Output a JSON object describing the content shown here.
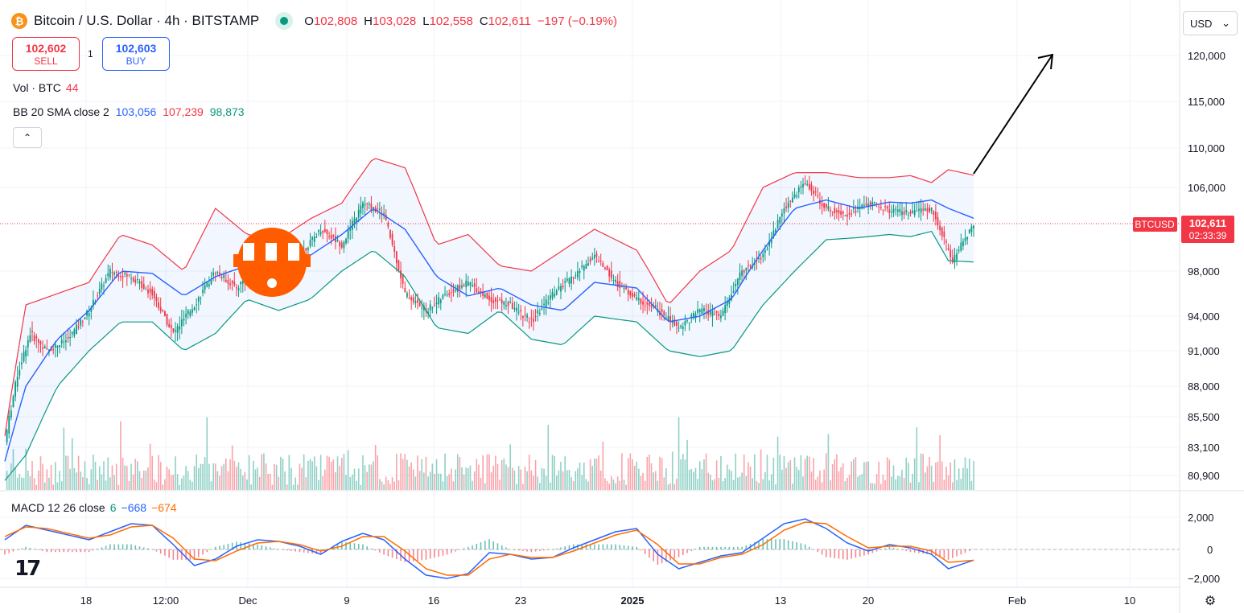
{
  "header": {
    "coin_icon": "bitcoin-icon",
    "coin_glyph": "₿",
    "title": "Bitcoin / U.S. Dollar · 4h · BITSTAMP",
    "o_label": "O",
    "o": "102,808",
    "h_label": "H",
    "h": "103,028",
    "l_label": "L",
    "l": "102,558",
    "c_label": "C",
    "c": "102,611",
    "change": "−197 (−0.19%)"
  },
  "trade": {
    "sell_price": "102,602",
    "sell_label": "SELL",
    "spread": "1",
    "buy_price": "102,603",
    "buy_label": "BUY"
  },
  "indicators": {
    "vol_label": "Vol · BTC",
    "vol_value": "44",
    "bb_label": "BB 20 SMA close 2",
    "bb_basis": "103,056",
    "bb_upper": "107,239",
    "bb_lower": "98,873",
    "collapse_glyph": "⌃",
    "macd_label": "MACD 12 26 close",
    "macd_signal_len": "6",
    "macd_value": "−668",
    "macd_signal": "−674"
  },
  "currency": {
    "value": "USD",
    "arrow": "⌄"
  },
  "settings_glyph": "⚙",
  "logo_text": "17",
  "colors": {
    "up": "#089981",
    "down": "#f23645",
    "bb_upper": "#f23645",
    "bb_basis": "#2962ff",
    "bb_lower": "#089981",
    "macd": "#2962ff",
    "signal": "#ff6d00",
    "last_price": "#f23645"
  },
  "chart_data": {
    "type": "candlestick",
    "symbol": "BTCUSD",
    "timeframe": "4h",
    "price_axis_ticks": [
      "120,000",
      "115,000",
      "110,000",
      "106,000",
      "98,000",
      "94,000",
      "91,000",
      "88,000",
      "85,500",
      "83,100",
      "80,900"
    ],
    "price_axis_values": [
      120000,
      115000,
      110000,
      106000,
      98000,
      94000,
      91000,
      88000,
      85500,
      83100,
      80900
    ],
    "macd_axis_ticks": [
      "2,000",
      "0",
      "−2,000"
    ],
    "x_ticks": [
      "18",
      "12:00",
      "Dec",
      "9",
      "16",
      "23",
      "2025",
      "13",
      "20",
      "Feb",
      "10"
    ],
    "last_price": {
      "symbol": "BTCUSD",
      "price": "102,611",
      "countdown": "02:33:39"
    },
    "close_path": [
      [
        0,
        83500
      ],
      [
        6,
        89000
      ],
      [
        12,
        92500
      ],
      [
        20,
        91000
      ],
      [
        30,
        92000
      ],
      [
        40,
        94500
      ],
      [
        50,
        98000
      ],
      [
        60,
        97500
      ],
      [
        70,
        96000
      ],
      [
        80,
        92500
      ],
      [
        90,
        95000
      ],
      [
        100,
        98000
      ],
      [
        110,
        96500
      ],
      [
        120,
        98500
      ],
      [
        130,
        97000
      ],
      [
        140,
        99500
      ],
      [
        150,
        102000
      ],
      [
        160,
        100500
      ],
      [
        170,
        104500
      ],
      [
        180,
        103500
      ],
      [
        190,
        96000
      ],
      [
        200,
        94500
      ],
      [
        210,
        96000
      ],
      [
        220,
        97000
      ],
      [
        230,
        95500
      ],
      [
        240,
        95000
      ],
      [
        250,
        93500
      ],
      [
        260,
        96000
      ],
      [
        270,
        97500
      ],
      [
        280,
        99500
      ],
      [
        290,
        97000
      ],
      [
        300,
        95500
      ],
      [
        310,
        94500
      ],
      [
        320,
        93000
      ],
      [
        330,
        94500
      ],
      [
        340,
        94000
      ],
      [
        350,
        98000
      ],
      [
        360,
        99500
      ],
      [
        370,
        104000
      ],
      [
        380,
        106500
      ],
      [
        390,
        104000
      ],
      [
        400,
        103500
      ],
      [
        410,
        104500
      ],
      [
        420,
        103800
      ],
      [
        430,
        103500
      ],
      [
        440,
        104000
      ],
      [
        450,
        99000
      ],
      [
        460,
        102611
      ]
    ],
    "bb_upper_path": [
      [
        0,
        84000
      ],
      [
        10,
        95000
      ],
      [
        25,
        96000
      ],
      [
        40,
        97000
      ],
      [
        55,
        101500
      ],
      [
        70,
        100500
      ],
      [
        85,
        98000
      ],
      [
        100,
        104000
      ],
      [
        115,
        101500
      ],
      [
        130,
        101000
      ],
      [
        145,
        103000
      ],
      [
        160,
        104500
      ],
      [
        175,
        109000
      ],
      [
        190,
        108000
      ],
      [
        205,
        100500
      ],
      [
        220,
        101500
      ],
      [
        235,
        98500
      ],
      [
        250,
        98000
      ],
      [
        265,
        100000
      ],
      [
        280,
        102000
      ],
      [
        300,
        100000
      ],
      [
        315,
        95000
      ],
      [
        330,
        98000
      ],
      [
        345,
        100000
      ],
      [
        360,
        106000
      ],
      [
        375,
        107500
      ],
      [
        390,
        107500
      ],
      [
        405,
        107000
      ],
      [
        420,
        107000
      ],
      [
        430,
        107200
      ],
      [
        440,
        106500
      ],
      [
        448,
        107800
      ],
      [
        460,
        107239
      ]
    ],
    "bb_basis_path": [
      [
        0,
        82000
      ],
      [
        10,
        88000
      ],
      [
        25,
        92000
      ],
      [
        40,
        94500
      ],
      [
        55,
        98000
      ],
      [
        70,
        97800
      ],
      [
        85,
        95800
      ],
      [
        100,
        97500
      ],
      [
        115,
        98500
      ],
      [
        130,
        97800
      ],
      [
        145,
        99500
      ],
      [
        160,
        101500
      ],
      [
        175,
        104000
      ],
      [
        190,
        102000
      ],
      [
        205,
        97500
      ],
      [
        220,
        95800
      ],
      [
        235,
        96500
      ],
      [
        250,
        95000
      ],
      [
        265,
        94500
      ],
      [
        280,
        97000
      ],
      [
        300,
        96500
      ],
      [
        315,
        93500
      ],
      [
        330,
        94000
      ],
      [
        345,
        95500
      ],
      [
        360,
        100000
      ],
      [
        375,
        104000
      ],
      [
        390,
        104800
      ],
      [
        405,
        104000
      ],
      [
        420,
        104600
      ],
      [
        430,
        104500
      ],
      [
        440,
        104800
      ],
      [
        448,
        104000
      ],
      [
        460,
        103056
      ]
    ],
    "bb_lower_path": [
      [
        0,
        80500
      ],
      [
        10,
        82500
      ],
      [
        25,
        88000
      ],
      [
        40,
        91000
      ],
      [
        55,
        93500
      ],
      [
        70,
        93500
      ],
      [
        85,
        91000
      ],
      [
        100,
        92500
      ],
      [
        115,
        95500
      ],
      [
        130,
        94500
      ],
      [
        145,
        95500
      ],
      [
        160,
        98000
      ],
      [
        175,
        100000
      ],
      [
        190,
        97500
      ],
      [
        205,
        93000
      ],
      [
        220,
        92500
      ],
      [
        235,
        94500
      ],
      [
        250,
        92000
      ],
      [
        265,
        91500
      ],
      [
        280,
        94000
      ],
      [
        300,
        93500
      ],
      [
        315,
        91000
      ],
      [
        330,
        90500
      ],
      [
        345,
        91000
      ],
      [
        360,
        95000
      ],
      [
        375,
        98000
      ],
      [
        390,
        101000
      ],
      [
        405,
        101200
      ],
      [
        420,
        101500
      ],
      [
        430,
        101300
      ],
      [
        440,
        101800
      ],
      [
        448,
        99000
      ],
      [
        460,
        98873
      ]
    ],
    "macd_path": [
      [
        0,
        600
      ],
      [
        10,
        1500
      ],
      [
        20,
        1200
      ],
      [
        30,
        900
      ],
      [
        40,
        600
      ],
      [
        50,
        1100
      ],
      [
        60,
        1600
      ],
      [
        70,
        1500
      ],
      [
        80,
        300
      ],
      [
        90,
        -1000
      ],
      [
        100,
        -600
      ],
      [
        110,
        200
      ],
      [
        120,
        600
      ],
      [
        130,
        500
      ],
      [
        140,
        200
      ],
      [
        150,
        -300
      ],
      [
        160,
        500
      ],
      [
        170,
        1000
      ],
      [
        180,
        600
      ],
      [
        190,
        -600
      ],
      [
        200,
        -1600
      ],
      [
        210,
        -1800
      ],
      [
        220,
        -1500
      ],
      [
        230,
        -200
      ],
      [
        240,
        -300
      ],
      [
        250,
        -600
      ],
      [
        260,
        -500
      ],
      [
        270,
        100
      ],
      [
        280,
        600
      ],
      [
        290,
        1100
      ],
      [
        300,
        1300
      ],
      [
        310,
        -300
      ],
      [
        320,
        -1200
      ],
      [
        330,
        -800
      ],
      [
        340,
        -400
      ],
      [
        350,
        -200
      ],
      [
        360,
        700
      ],
      [
        370,
        1600
      ],
      [
        380,
        1900
      ],
      [
        390,
        1300
      ],
      [
        400,
        400
      ],
      [
        410,
        -100
      ],
      [
        420,
        300
      ],
      [
        430,
        100
      ],
      [
        440,
        -300
      ],
      [
        448,
        -1200
      ],
      [
        460,
        -668
      ]
    ],
    "signal_path": [
      [
        0,
        800
      ],
      [
        10,
        1400
      ],
      [
        20,
        1300
      ],
      [
        30,
        1000
      ],
      [
        40,
        700
      ],
      [
        50,
        900
      ],
      [
        60,
        1400
      ],
      [
        70,
        1500
      ],
      [
        80,
        700
      ],
      [
        90,
        -600
      ],
      [
        100,
        -700
      ],
      [
        110,
        -100
      ],
      [
        120,
        400
      ],
      [
        130,
        500
      ],
      [
        140,
        300
      ],
      [
        150,
        -100
      ],
      [
        160,
        200
      ],
      [
        170,
        800
      ],
      [
        180,
        800
      ],
      [
        190,
        -100
      ],
      [
        200,
        -1200
      ],
      [
        210,
        -1600
      ],
      [
        220,
        -1600
      ],
      [
        230,
        -600
      ],
      [
        240,
        -300
      ],
      [
        250,
        -500
      ],
      [
        260,
        -500
      ],
      [
        270,
        -100
      ],
      [
        280,
        400
      ],
      [
        290,
        900
      ],
      [
        300,
        1200
      ],
      [
        310,
        300
      ],
      [
        320,
        -900
      ],
      [
        330,
        -900
      ],
      [
        340,
        -500
      ],
      [
        350,
        -300
      ],
      [
        360,
        300
      ],
      [
        370,
        1200
      ],
      [
        380,
        1700
      ],
      [
        390,
        1600
      ],
      [
        400,
        800
      ],
      [
        410,
        100
      ],
      [
        420,
        200
      ],
      [
        430,
        200
      ],
      [
        440,
        -100
      ],
      [
        448,
        -800
      ],
      [
        460,
        -674
      ]
    ],
    "annotation": "upward trend arrow"
  }
}
